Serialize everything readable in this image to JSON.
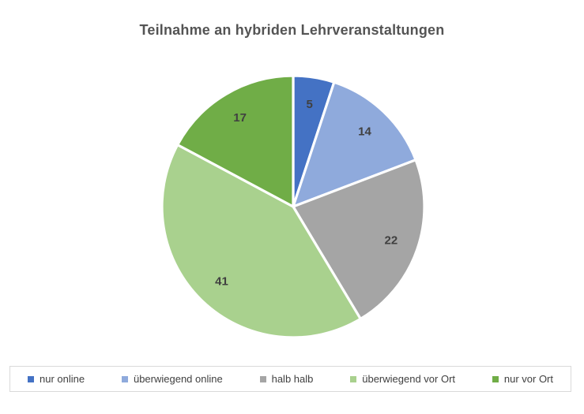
{
  "title": "Teilnahme an hybriden Lehrveranstaltungen",
  "chart_data": {
    "type": "pie",
    "title": "Teilnahme an hybriden Lehrveranstaltungen",
    "categories": [
      "nur online",
      "überwiegend online",
      "halb halb",
      "überwiegend vor Ort",
      "nur vor Ort"
    ],
    "values": [
      5,
      14,
      22,
      41,
      17
    ],
    "colors": [
      "#4472C4",
      "#8FAADC",
      "#A5A5A5",
      "#A9D18E",
      "#70AD47"
    ],
    "data_labels": [
      5,
      14,
      22,
      41,
      17
    ],
    "start_angle_deg": 0,
    "direction": "clockwise",
    "legend_position": "bottom",
    "label_color": "#404040",
    "title_color": "#545454",
    "separator_color": "#FFFFFF",
    "background_color": "#FFFFFF"
  }
}
